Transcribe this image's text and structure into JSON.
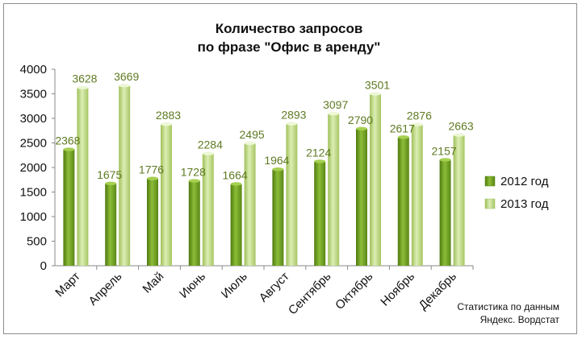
{
  "chart_data": {
    "type": "bar",
    "title_lines": [
      "Количество запросов",
      "по фразе \"Офис в аренду\""
    ],
    "categories": [
      "Март",
      "Апрель",
      "Май",
      "Июнь",
      "Июль",
      "Август",
      "Сентябрь",
      "Октябрь",
      "Ноябрь",
      "Декабрь"
    ],
    "series": [
      {
        "name": "2012 год",
        "values": [
          2368,
          1675,
          1776,
          1728,
          1664,
          1964,
          2124,
          2790,
          2617,
          2157
        ],
        "color": "#6e9a1e"
      },
      {
        "name": "2013 год",
        "values": [
          3628,
          3669,
          2883,
          2284,
          2495,
          2893,
          3097,
          3501,
          2876,
          2663
        ],
        "color": "#bcd77a"
      }
    ],
    "yticks": [
      0,
      500,
      1000,
      1500,
      2000,
      2500,
      3000,
      3500,
      4000
    ],
    "ylim": [
      0,
      4000
    ],
    "grid": false,
    "legend": "right",
    "data_label_color": "#5f7a22"
  },
  "note": {
    "line1": "Статистика по данным",
    "line2": "Яндекс. Вордстат"
  }
}
